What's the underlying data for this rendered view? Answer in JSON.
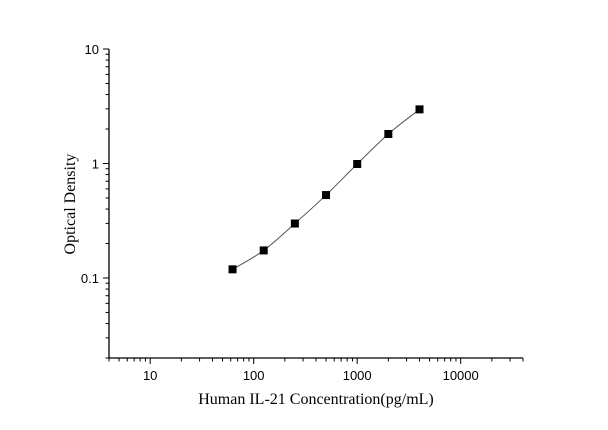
{
  "chart_data": {
    "type": "scatter",
    "title": "",
    "xlabel": "Human IL-21 Concentration(pg/mL)",
    "ylabel": "Optical Density",
    "x_scale": "log",
    "y_scale": "log",
    "xlim": [
      4,
      40000
    ],
    "ylim": [
      0.02,
      10
    ],
    "x_ticks": [
      10,
      100,
      1000,
      10000
    ],
    "x_tick_labels": [
      "10",
      "100",
      "1000",
      "10000"
    ],
    "y_ticks": [
      0.1,
      1,
      10
    ],
    "y_tick_labels": [
      "0.1",
      "1",
      "10"
    ],
    "grid": false,
    "series": [
      {
        "x": [
          62.5,
          125,
          250,
          500,
          1000,
          2000,
          4000
        ],
        "y": [
          0.119,
          0.174,
          0.299,
          0.53,
          0.99,
          1.81,
          2.97
        ],
        "marker": "square",
        "fit_curve": true,
        "color": "#000000"
      }
    ]
  }
}
